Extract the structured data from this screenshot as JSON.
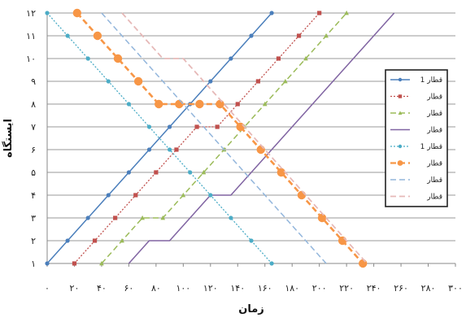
{
  "chart_data": {
    "type": "line",
    "xlabel": "زمان",
    "ylabel": "ایستگاه",
    "xlim": [
      0,
      300
    ],
    "ylim": [
      1,
      12
    ],
    "x_ticks": [
      0,
      20,
      40,
      60,
      80,
      100,
      120,
      140,
      160,
      180,
      200,
      220,
      240,
      260,
      280,
      300
    ],
    "x_tick_labels": [
      "۰",
      "۲۰",
      "۴۰",
      "۶۰",
      "۸۰",
      "۱۰۰",
      "۱۲۰",
      "۱۴۰",
      "۱۶۰",
      "۱۸۰",
      "۲۰۰",
      "۲۲۰",
      "۲۴۰",
      "۲۶۰",
      "۲۸۰",
      "۳۰۰"
    ],
    "y_ticks": [
      1,
      2,
      3,
      4,
      5,
      6,
      7,
      8,
      9,
      10,
      11,
      12
    ],
    "y_tick_labels": [
      "۱",
      "۲",
      "۳",
      "۴",
      "۵",
      "۶",
      "۷",
      "۸",
      "۹",
      "۱۰",
      "۱۱",
      "۱۲"
    ],
    "grid": true,
    "legend": "right",
    "series": [
      {
        "name": "قطار 1",
        "color": "#4a7ebb",
        "dash": "solid",
        "marker": "circle",
        "width": 1.5,
        "points": [
          [
            0,
            1
          ],
          [
            15,
            2
          ],
          [
            30,
            3
          ],
          [
            45,
            4
          ],
          [
            60,
            5
          ],
          [
            75,
            6
          ],
          [
            90,
            7
          ],
          [
            105,
            8
          ],
          [
            120,
            9
          ],
          [
            135,
            10
          ],
          [
            150,
            11
          ],
          [
            165,
            12
          ]
        ]
      },
      {
        "name": "قطار",
        "color": "#c0504d",
        "dash": "dot",
        "marker": "square",
        "width": 1.3,
        "points": [
          [
            20,
            1
          ],
          [
            35,
            2
          ],
          [
            50,
            3
          ],
          [
            65,
            4
          ],
          [
            80,
            5
          ],
          [
            95,
            6
          ],
          [
            110,
            7
          ],
          [
            125,
            7
          ],
          [
            140,
            8
          ],
          [
            155,
            9
          ],
          [
            170,
            10
          ],
          [
            185,
            11
          ],
          [
            200,
            12
          ]
        ]
      },
      {
        "name": "قطار",
        "color": "#9bbb59",
        "dash": "dash",
        "marker": "triangle",
        "width": 1.5,
        "points": [
          [
            40,
            1
          ],
          [
            55,
            2
          ],
          [
            70,
            3
          ],
          [
            85,
            3
          ],
          [
            100,
            4
          ],
          [
            115,
            5
          ],
          [
            130,
            6
          ],
          [
            145,
            7
          ],
          [
            160,
            8
          ],
          [
            175,
            9
          ],
          [
            190,
            10
          ],
          [
            205,
            11
          ],
          [
            220,
            12
          ]
        ]
      },
      {
        "name": "قطار",
        "color": "#8064a2",
        "dash": "solid",
        "marker": "none",
        "width": 1.5,
        "points": [
          [
            60,
            1
          ],
          [
            75,
            2
          ],
          [
            90,
            2
          ],
          [
            105,
            3
          ],
          [
            120,
            4
          ],
          [
            135,
            4
          ],
          [
            150,
            5
          ],
          [
            165,
            6
          ],
          [
            180,
            7
          ],
          [
            195,
            8
          ],
          [
            210,
            9
          ],
          [
            225,
            10
          ],
          [
            240,
            11
          ],
          [
            255,
            12
          ]
        ]
      },
      {
        "name": "قطار 1",
        "color": "#4bacc6",
        "dash": "dot",
        "marker": "circle",
        "width": 1.3,
        "points": [
          [
            0,
            12
          ],
          [
            15,
            11
          ],
          [
            30,
            10
          ],
          [
            45,
            9
          ],
          [
            60,
            8
          ],
          [
            75,
            7
          ],
          [
            90,
            6
          ],
          [
            105,
            5
          ],
          [
            120,
            4
          ],
          [
            135,
            3
          ],
          [
            150,
            2
          ],
          [
            165,
            1
          ]
        ]
      },
      {
        "name": "قطار",
        "color": "#f79646",
        "dash": "dash",
        "marker": "circle",
        "width": 2.6,
        "points": [
          [
            22,
            12
          ],
          [
            37,
            11
          ],
          [
            52,
            10
          ],
          [
            67,
            9
          ],
          [
            82,
            8
          ],
          [
            97,
            8
          ],
          [
            112,
            8
          ],
          [
            127,
            8
          ],
          [
            142,
            7
          ],
          [
            157,
            6
          ],
          [
            172,
            5
          ],
          [
            187,
            4
          ],
          [
            202,
            3
          ],
          [
            217,
            2
          ],
          [
            232,
            1
          ]
        ]
      },
      {
        "name": "قطار",
        "color": "#93b6dc",
        "dash": "dash",
        "marker": "none",
        "width": 1.5,
        "points": [
          [
            40,
            12
          ],
          [
            55,
            11
          ],
          [
            70,
            10
          ],
          [
            85,
            9
          ],
          [
            100,
            8
          ],
          [
            115,
            7
          ],
          [
            130,
            6
          ],
          [
            145,
            5
          ],
          [
            160,
            4
          ],
          [
            175,
            3
          ],
          [
            190,
            2
          ],
          [
            205,
            1
          ]
        ]
      },
      {
        "name": "قطار",
        "color": "#e6b9b8",
        "dash": "dash",
        "marker": "none",
        "width": 1.8,
        "points": [
          [
            55,
            12
          ],
          [
            70,
            11
          ],
          [
            85,
            10
          ],
          [
            100,
            10
          ],
          [
            115,
            9
          ],
          [
            130,
            8
          ],
          [
            145,
            7
          ],
          [
            160,
            6
          ],
          [
            175,
            5
          ],
          [
            190,
            4
          ],
          [
            205,
            3
          ],
          [
            220,
            2
          ],
          [
            235,
            1
          ]
        ]
      }
    ]
  }
}
